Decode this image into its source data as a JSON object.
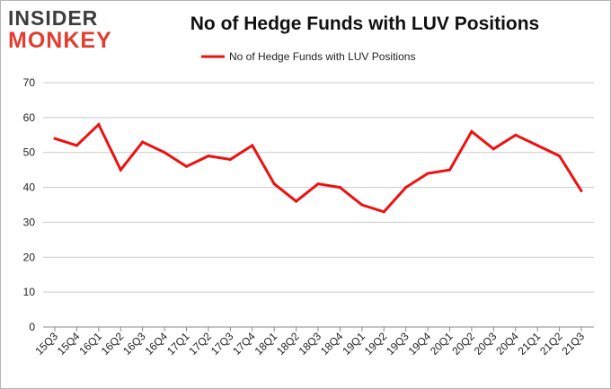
{
  "brand": {
    "logo_top": "INSIDER",
    "logo_bottom": "MONKEY",
    "logo_top_color": "#3c3c3c",
    "logo_bottom_color": "#e23d2e"
  },
  "chart_data": {
    "type": "line",
    "title": "No of Hedge Funds with LUV Positions",
    "xlabel": "",
    "ylabel": "",
    "ylim": [
      0,
      70
    ],
    "yticks": [
      0,
      10,
      20,
      30,
      40,
      50,
      60,
      70
    ],
    "grid": true,
    "legend_position": "top-center",
    "categories": [
      "15Q3",
      "15Q4",
      "16Q1",
      "16Q2",
      "16Q3",
      "16Q4",
      "17Q1",
      "17Q2",
      "17Q3",
      "17Q4",
      "18Q1",
      "18Q2",
      "18Q3",
      "18Q4",
      "19Q1",
      "19Q2",
      "19Q3",
      "19Q4",
      "20Q1",
      "20Q2",
      "20Q3",
      "20Q4",
      "21Q1",
      "21Q2",
      "21Q3"
    ],
    "series": [
      {
        "name": "No of Hedge Funds with LUV Positions",
        "color": "#ee1111",
        "values": [
          54,
          52,
          58,
          45,
          53,
          50,
          46,
          49,
          48,
          52,
          41,
          36,
          41,
          40,
          35,
          33,
          40,
          44,
          45,
          56,
          51,
          55,
          52,
          49,
          39
        ]
      }
    ]
  }
}
